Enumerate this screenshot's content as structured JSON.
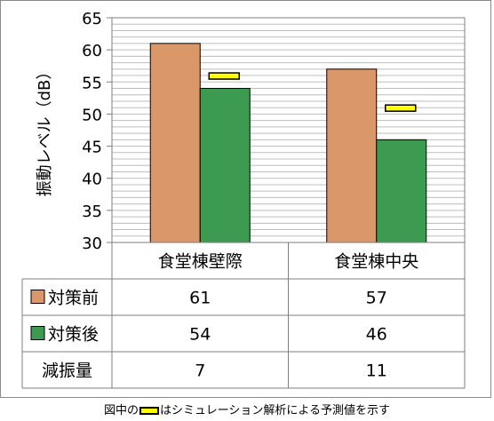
{
  "chart_data": {
    "type": "bar",
    "ylabel": "振動レベル（dB）",
    "ylim": [
      30,
      65
    ],
    "y_ticks": [
      "30",
      "35",
      "40",
      "45",
      "50",
      "55",
      "60",
      "65"
    ],
    "grid": true,
    "categories": [
      "食堂棟壁際",
      "食堂棟中央"
    ],
    "series": [
      {
        "name": "対策前",
        "values": [
          61,
          57
        ],
        "display": [
          "61",
          "57"
        ],
        "color": "#d9976a"
      },
      {
        "name": "対策後",
        "values": [
          54,
          46
        ],
        "display": [
          "54",
          "46"
        ],
        "color": "#3c9a51"
      }
    ],
    "predicted": {
      "values": [
        56,
        51
      ],
      "color": "#ffff00"
    },
    "reduction": {
      "name": "減振量",
      "values": [
        "7",
        "11"
      ]
    }
  },
  "footnote": {
    "before": "図中の",
    "after": "はシミュレーション解析による予測値を示す"
  }
}
